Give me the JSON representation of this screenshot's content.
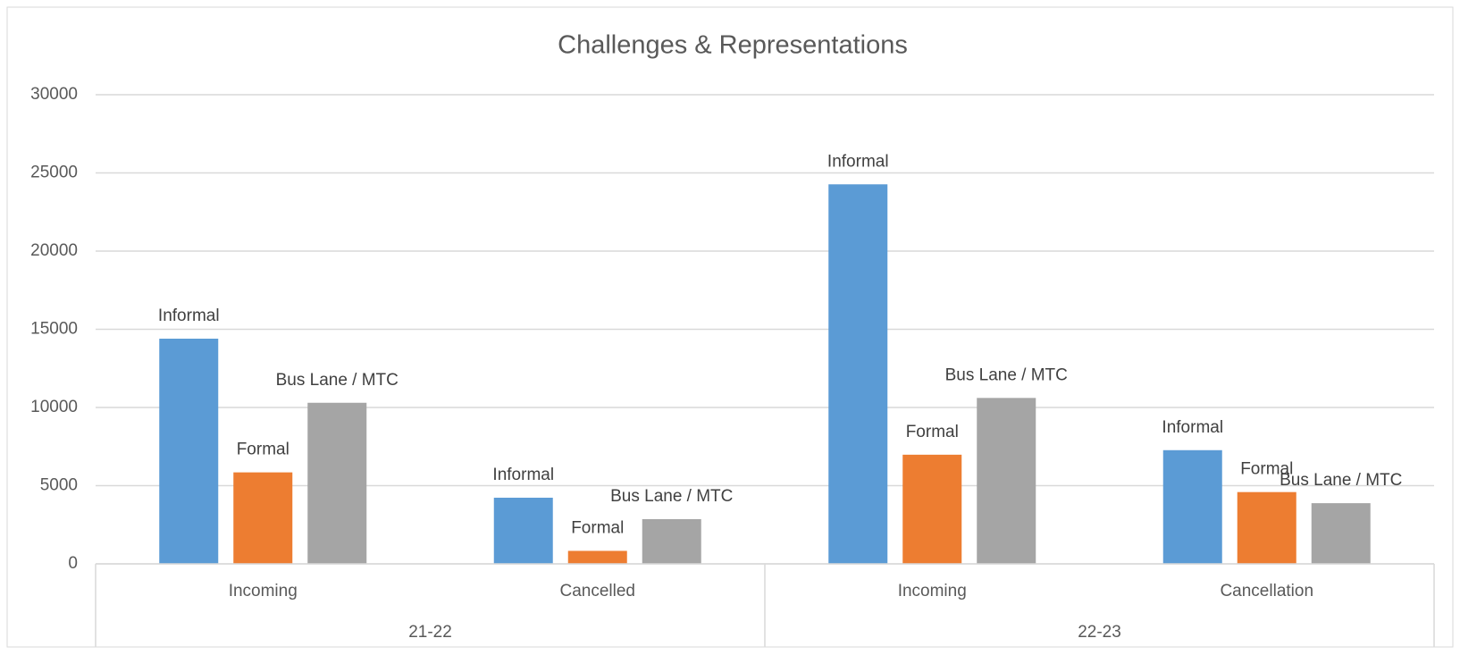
{
  "chart_data": {
    "type": "bar",
    "title": "Challenges & Representations",
    "category_groups": [
      {
        "name": "21-22",
        "categories": [
          "Incoming",
          "Cancelled"
        ]
      },
      {
        "name": "22-23",
        "categories": [
          "Incoming",
          "Cancellation"
        ]
      }
    ],
    "series": [
      {
        "name": "Informal",
        "color": "#5b9bd5",
        "values": [
          14400,
          4230,
          24270,
          7270
        ]
      },
      {
        "name": "Formal",
        "color": "#ed7d31",
        "values": [
          5850,
          830,
          6980,
          4590
        ]
      },
      {
        "name": "Bus Lane / MTC",
        "color": "#a5a5a5",
        "values": [
          10300,
          2860,
          10610,
          3880
        ]
      }
    ],
    "ylim": [
      0,
      30000
    ],
    "yticks": [
      0,
      5000,
      10000,
      15000,
      20000,
      25000,
      30000
    ],
    "grid": true
  }
}
